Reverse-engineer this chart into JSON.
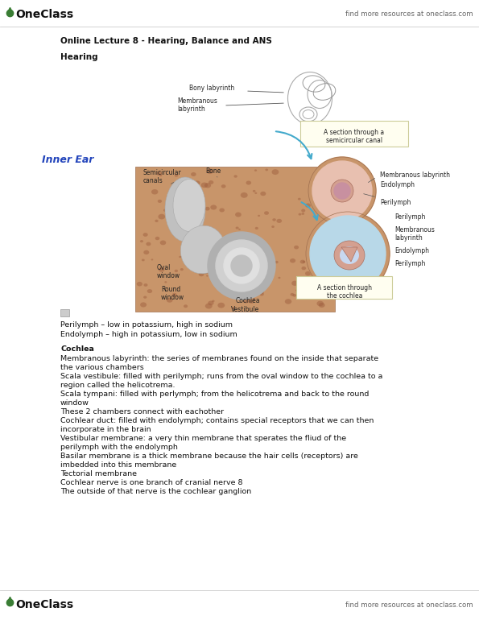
{
  "bg_color": "#ffffff",
  "oneclass_green": "#3a7d34",
  "oneclass_text": "OneClass",
  "find_more_text": "find more resources at oneclass.com",
  "title_line": "Online Lecture 8 - Hearing, Balance and ANS",
  "section_heading": "Hearing",
  "inner_ear_label": "Inner Ear",
  "inner_ear_color": "#2244bb",
  "perilymph_line1": "Perilymph – low in potassium, high in sodium",
  "perilymph_line2": "Endolymph – high in potassium, low in sodium",
  "cochlea_heading": "Cochlea",
  "body_lines": [
    "Membranous labyrinth: the series of membranes found on the inside that separate",
    "the various chambers",
    "Scala vestibule: filled with perilymph; runs from the oval window to the cochlea to a",
    "region called the helicotrema.",
    "Scala tympani: filled with perlymph; from the helicotrema and back to the round",
    "window",
    "These 2 chambers connect with eachother",
    "Cochlear duct: filled with endolymph; contains special receptors that we can then",
    "incorporate in the brain",
    "Vestibular membrane: a very thin membrane that sperates the fliud of the",
    "perilymph with the endolymph",
    "Basilar membrane is a thick membrane because the hair cells (receptors) are",
    "imbedded into this membrane",
    "Tectorial membrane",
    "Cochlear nerve is one branch of cranial nerve 8",
    "The outside of that nerve is the cochlear ganglion"
  ],
  "footer_text": "find more resources at oneclass.com",
  "header_fontsize": 10,
  "title_fontsize": 7.5,
  "body_fontsize": 6.8,
  "label_fontsize": 5.5,
  "inner_ear_fontsize": 9
}
